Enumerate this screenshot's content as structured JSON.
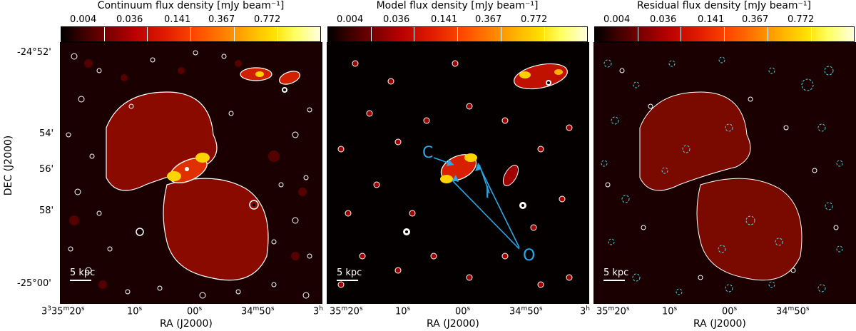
{
  "panels": [
    {
      "id": "continuum",
      "colorbar_title": "Continuum flux density [mJy beam⁻¹]"
    },
    {
      "id": "model",
      "colorbar_title": "Model flux density [mJy beam⁻¹]"
    },
    {
      "id": "residual",
      "colorbar_title": "Residual flux density [mJy beam⁻¹]"
    }
  ],
  "colorbar_ticks": [
    "0.004",
    "0.036",
    "0.141",
    "0.367",
    "0.772"
  ],
  "y_axis": {
    "title": "DEC (J2000)",
    "ticks": [
      "-24°52'",
      "54'",
      "56'",
      "58'",
      "-25°00'"
    ]
  },
  "x_axis": {
    "title": "RA (J2000)",
    "ticks": [
      "3h35m20s",
      "10s",
      "00s",
      "34m50s",
      "3h"
    ]
  },
  "x_tick_parts": {
    "first": {
      "h": "3",
      "m": "35",
      "s": "20"
    },
    "second": "10",
    "third": "00",
    "fourth": {
      "m": "34",
      "s": "50"
    },
    "last": "3"
  },
  "scale_bar_label": "5 kpc",
  "annotations": {
    "c": "C",
    "i": "I",
    "o": "O"
  },
  "colors": {
    "annotation": "#29a9e8",
    "contour": "#ffffff",
    "negative_contour": "#4fd6e6"
  }
}
